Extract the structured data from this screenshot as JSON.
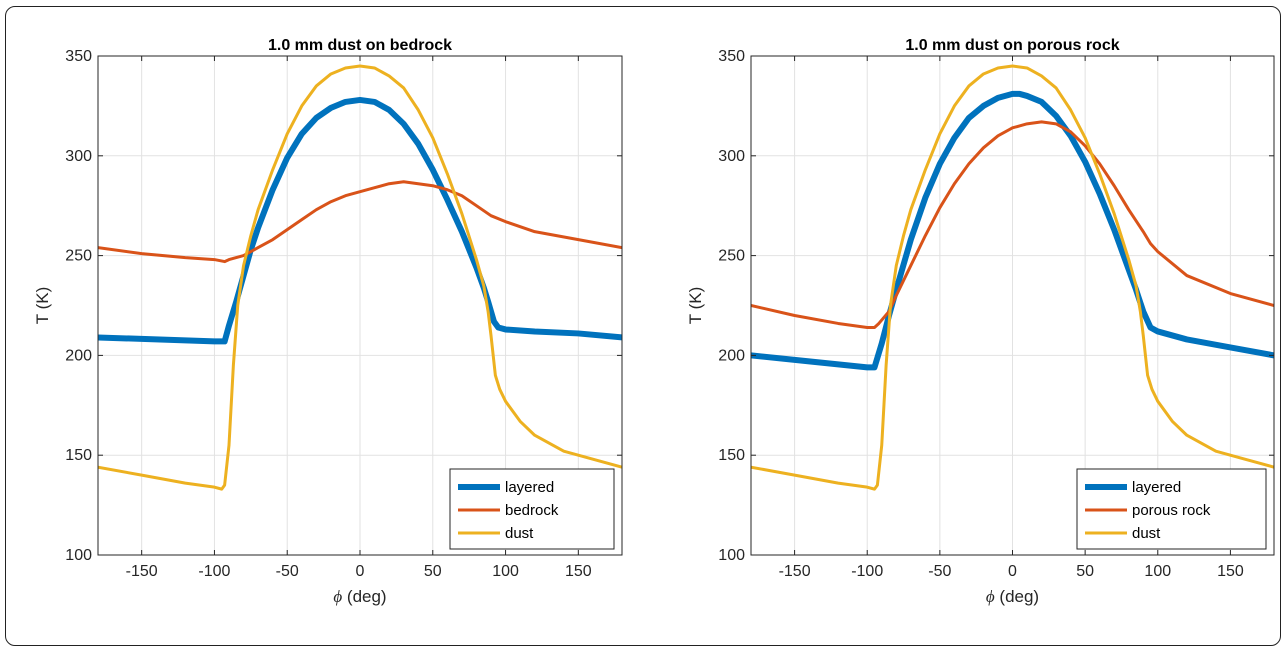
{
  "colors": {
    "layered": "#0072BD",
    "secondary": "#D95319",
    "dust": "#EDB120"
  },
  "chart_data": [
    {
      "type": "line",
      "title": "1.0 mm dust on bedrock",
      "xlabel_symbol": "ϕ",
      "xlabel": "(deg)",
      "ylabel": "T (K)",
      "xlim": [
        -180,
        180
      ],
      "ylim": [
        100,
        350
      ],
      "xticks": [
        -150,
        -100,
        -50,
        0,
        50,
        100,
        150
      ],
      "yticks": [
        100,
        150,
        200,
        250,
        300,
        350
      ],
      "grid": true,
      "legend": "bottom-right",
      "series": [
        {
          "name": "layered",
          "color": "#0072BD",
          "width": 6,
          "x": [
            -180,
            -140,
            -100,
            -93,
            -90,
            -85,
            -80,
            -75,
            -70,
            -60,
            -50,
            -40,
            -30,
            -20,
            -10,
            0,
            10,
            20,
            30,
            40,
            50,
            60,
            70,
            80,
            85,
            88,
            92,
            95,
            100,
            120,
            150,
            180
          ],
          "y": [
            209,
            208,
            207,
            207,
            215,
            227,
            240,
            253,
            264,
            283,
            299,
            311,
            319,
            324,
            327,
            328,
            327,
            323,
            316,
            306,
            293,
            278,
            262,
            244,
            234,
            227,
            217,
            214,
            213,
            212,
            211,
            209
          ]
        },
        {
          "name": "bedrock",
          "color": "#D95319",
          "width": 3,
          "x": [
            -180,
            -150,
            -120,
            -100,
            -93,
            -90,
            -80,
            -70,
            -60,
            -50,
            -40,
            -30,
            -20,
            -10,
            0,
            10,
            20,
            30,
            40,
            50,
            60,
            70,
            80,
            90,
            100,
            120,
            150,
            180
          ],
          "y": [
            254,
            251,
            249,
            248,
            247,
            248,
            250,
            254,
            258,
            263,
            268,
            273,
            277,
            280,
            282,
            284,
            286,
            287,
            286,
            285,
            283,
            280,
            275,
            270,
            267,
            262,
            258,
            254
          ]
        },
        {
          "name": "dust",
          "color": "#EDB120",
          "width": 3,
          "x": [
            -180,
            -150,
            -120,
            -100,
            -95,
            -93,
            -90,
            -87,
            -84,
            -80,
            -75,
            -70,
            -60,
            -50,
            -40,
            -30,
            -20,
            -10,
            0,
            10,
            20,
            30,
            40,
            50,
            60,
            70,
            80,
            85,
            88,
            90,
            93,
            96,
            100,
            110,
            120,
            140,
            160,
            180
          ],
          "y": [
            144,
            140,
            136,
            134,
            133,
            135,
            155,
            195,
            225,
            245,
            260,
            273,
            293,
            311,
            325,
            335,
            341,
            344,
            345,
            344,
            340,
            334,
            323,
            309,
            291,
            271,
            248,
            235,
            222,
            210,
            190,
            183,
            177,
            167,
            160,
            152,
            148,
            144
          ]
        }
      ]
    },
    {
      "type": "line",
      "title": "1.0 mm dust on porous rock",
      "xlabel_symbol": "ϕ",
      "xlabel": "(deg)",
      "ylabel": "T (K)",
      "xlim": [
        -180,
        180
      ],
      "ylim": [
        100,
        350
      ],
      "xticks": [
        -150,
        -100,
        -50,
        0,
        50,
        100,
        150
      ],
      "yticks": [
        100,
        150,
        200,
        250,
        300,
        350
      ],
      "grid": true,
      "legend": "bottom-right",
      "series": [
        {
          "name": "layered",
          "color": "#0072BD",
          "width": 6,
          "x": [
            -180,
            -140,
            -100,
            -95,
            -90,
            -85,
            -80,
            -70,
            -60,
            -50,
            -40,
            -30,
            -20,
            -10,
            0,
            5,
            10,
            20,
            30,
            40,
            50,
            60,
            70,
            80,
            85,
            90,
            95,
            100,
            120,
            150,
            180
          ],
          "y": [
            200,
            197,
            194,
            194,
            206,
            220,
            233,
            258,
            279,
            296,
            309,
            319,
            325,
            329,
            331,
            331,
            330,
            327,
            320,
            310,
            297,
            281,
            263,
            243,
            233,
            222,
            214,
            212,
            208,
            204,
            200
          ]
        },
        {
          "name": "porous rock",
          "color": "#D95319",
          "width": 3,
          "x": [
            -180,
            -150,
            -120,
            -100,
            -95,
            -92,
            -85,
            -80,
            -70,
            -60,
            -50,
            -40,
            -30,
            -20,
            -10,
            0,
            10,
            20,
            30,
            40,
            50,
            60,
            70,
            80,
            90,
            95,
            100,
            120,
            150,
            180
          ],
          "y": [
            225,
            220,
            216,
            214,
            214,
            216,
            222,
            230,
            245,
            260,
            274,
            286,
            296,
            304,
            310,
            314,
            316,
            317,
            316,
            312,
            305,
            296,
            285,
            273,
            262,
            256,
            252,
            240,
            231,
            225
          ]
        },
        {
          "name": "dust",
          "color": "#EDB120",
          "width": 3,
          "x": [
            -180,
            -150,
            -120,
            -100,
            -95,
            -93,
            -90,
            -87,
            -84,
            -80,
            -75,
            -70,
            -60,
            -50,
            -40,
            -30,
            -20,
            -10,
            0,
            10,
            20,
            30,
            40,
            50,
            60,
            70,
            80,
            85,
            88,
            90,
            93,
            96,
            100,
            110,
            120,
            140,
            160,
            180
          ],
          "y": [
            144,
            140,
            136,
            134,
            133,
            135,
            155,
            195,
            225,
            245,
            260,
            273,
            293,
            311,
            325,
            335,
            341,
            344,
            345,
            344,
            340,
            334,
            323,
            309,
            291,
            271,
            248,
            235,
            222,
            210,
            190,
            183,
            177,
            167,
            160,
            152,
            148,
            144
          ]
        }
      ]
    }
  ]
}
